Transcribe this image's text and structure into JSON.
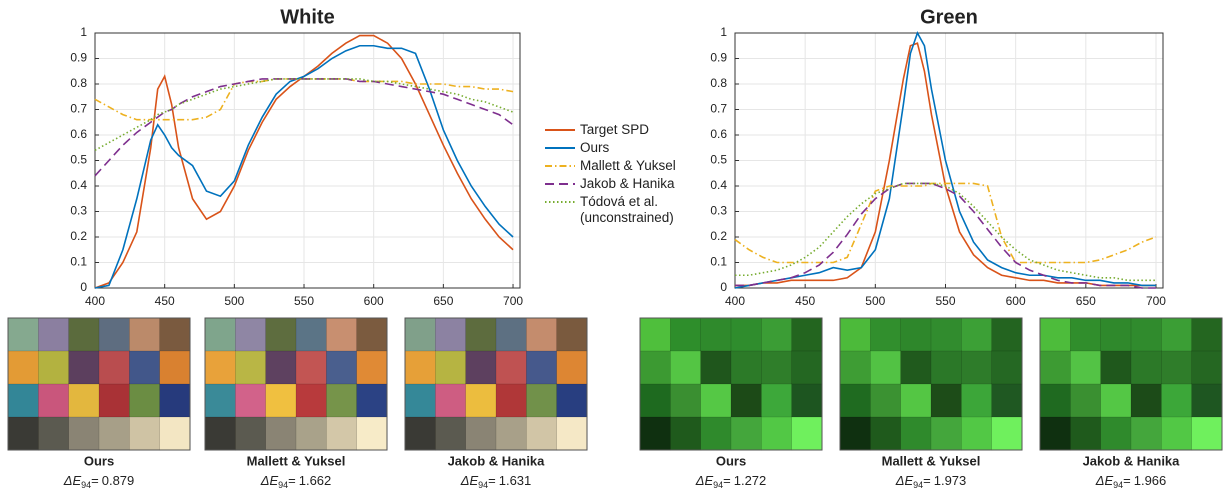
{
  "chart_data": [
    {
      "type": "line",
      "title": "White",
      "x": [
        400,
        410,
        420,
        430,
        440,
        445,
        450,
        455,
        460,
        470,
        480,
        490,
        500,
        510,
        520,
        530,
        540,
        550,
        560,
        570,
        580,
        590,
        600,
        610,
        620,
        630,
        640,
        650,
        660,
        670,
        680,
        690,
        700
      ],
      "series": [
        {
          "values": [
            0,
            0.02,
            0.1,
            0.22,
            0.55,
            0.78,
            0.83,
            0.72,
            0.55,
            0.35,
            0.27,
            0.3,
            0.4,
            0.54,
            0.65,
            0.74,
            0.79,
            0.83,
            0.87,
            0.92,
            0.96,
            0.99,
            0.99,
            0.96,
            0.9,
            0.8,
            0.68,
            0.56,
            0.45,
            0.35,
            0.27,
            0.2,
            0.15
          ]
        },
        {
          "values": [
            0,
            0.01,
            0.15,
            0.35,
            0.58,
            0.64,
            0.6,
            0.55,
            0.52,
            0.48,
            0.38,
            0.36,
            0.42,
            0.56,
            0.67,
            0.76,
            0.81,
            0.83,
            0.86,
            0.9,
            0.93,
            0.95,
            0.95,
            0.94,
            0.94,
            0.92,
            0.78,
            0.62,
            0.5,
            0.4,
            0.32,
            0.25,
            0.2
          ]
        },
        {
          "values": [
            0.74,
            0.71,
            0.68,
            0.66,
            0.66,
            0.66,
            0.66,
            0.66,
            0.66,
            0.66,
            0.67,
            0.7,
            0.8,
            0.81,
            0.81,
            0.82,
            0.82,
            0.82,
            0.82,
            0.82,
            0.82,
            0.81,
            0.81,
            0.81,
            0.81,
            0.8,
            0.8,
            0.8,
            0.79,
            0.79,
            0.78,
            0.78,
            0.77
          ]
        },
        {
          "values": [
            0.44,
            0.5,
            0.56,
            0.61,
            0.65,
            0.67,
            0.69,
            0.7,
            0.72,
            0.75,
            0.77,
            0.79,
            0.8,
            0.81,
            0.82,
            0.82,
            0.82,
            0.82,
            0.82,
            0.82,
            0.82,
            0.81,
            0.81,
            0.8,
            0.79,
            0.78,
            0.77,
            0.76,
            0.74,
            0.72,
            0.7,
            0.68,
            0.64
          ]
        },
        {
          "values": [
            0.54,
            0.57,
            0.6,
            0.63,
            0.66,
            0.68,
            0.69,
            0.7,
            0.72,
            0.74,
            0.76,
            0.78,
            0.79,
            0.8,
            0.81,
            0.82,
            0.82,
            0.82,
            0.82,
            0.82,
            0.82,
            0.82,
            0.81,
            0.81,
            0.8,
            0.79,
            0.78,
            0.77,
            0.76,
            0.74,
            0.73,
            0.71,
            0.69
          ]
        }
      ],
      "xlim": [
        400,
        705
      ],
      "ylim": [
        0,
        1
      ],
      "xticks": [
        400,
        450,
        500,
        550,
        600,
        650,
        700
      ],
      "yticks": [
        0,
        0.1,
        0.2,
        0.3,
        0.4,
        0.5,
        0.6,
        0.7,
        0.8,
        0.9,
        1
      ],
      "grid": true
    },
    {
      "type": "line",
      "title": "Green",
      "x": [
        400,
        410,
        420,
        430,
        440,
        450,
        460,
        470,
        480,
        490,
        500,
        510,
        520,
        525,
        530,
        535,
        540,
        550,
        560,
        570,
        580,
        590,
        600,
        610,
        620,
        630,
        640,
        650,
        660,
        670,
        680,
        690,
        700
      ],
      "series": [
        {
          "values": [
            0.01,
            0.01,
            0.02,
            0.02,
            0.03,
            0.03,
            0.03,
            0.03,
            0.04,
            0.08,
            0.22,
            0.5,
            0.82,
            0.95,
            0.96,
            0.85,
            0.68,
            0.4,
            0.22,
            0.13,
            0.08,
            0.05,
            0.04,
            0.03,
            0.03,
            0.02,
            0.02,
            0.02,
            0.01,
            0.01,
            0.01,
            0.01,
            0.01
          ]
        },
        {
          "values": [
            0,
            0.01,
            0.02,
            0.03,
            0.04,
            0.05,
            0.06,
            0.08,
            0.07,
            0.08,
            0.15,
            0.35,
            0.72,
            0.92,
            1,
            0.95,
            0.78,
            0.5,
            0.3,
            0.18,
            0.11,
            0.08,
            0.06,
            0.05,
            0.05,
            0.04,
            0.04,
            0.03,
            0.03,
            0.02,
            0.02,
            0.01,
            0.01
          ]
        },
        {
          "values": [
            0.19,
            0.15,
            0.12,
            0.1,
            0.1,
            0.1,
            0.1,
            0.1,
            0.12,
            0.25,
            0.38,
            0.4,
            0.4,
            0.4,
            0.4,
            0.4,
            0.41,
            0.41,
            0.41,
            0.41,
            0.4,
            0.2,
            0.1,
            0.1,
            0.1,
            0.1,
            0.1,
            0.1,
            0.11,
            0.13,
            0.15,
            0.18,
            0.2
          ]
        },
        {
          "values": [
            0.01,
            0.01,
            0.02,
            0.03,
            0.04,
            0.06,
            0.09,
            0.14,
            0.21,
            0.29,
            0.35,
            0.39,
            0.41,
            0.41,
            0.41,
            0.41,
            0.41,
            0.39,
            0.36,
            0.3,
            0.23,
            0.16,
            0.1,
            0.07,
            0.05,
            0.03,
            0.02,
            0.02,
            0.01,
            0.01,
            0.01,
            0,
            0
          ]
        },
        {
          "values": [
            0.05,
            0.05,
            0.06,
            0.07,
            0.09,
            0.12,
            0.16,
            0.22,
            0.28,
            0.33,
            0.37,
            0.39,
            0.41,
            0.41,
            0.41,
            0.41,
            0.41,
            0.4,
            0.37,
            0.32,
            0.26,
            0.2,
            0.15,
            0.11,
            0.09,
            0.07,
            0.06,
            0.05,
            0.04,
            0.04,
            0.03,
            0.03,
            0.03
          ]
        }
      ],
      "xlim": [
        400,
        705
      ],
      "ylim": [
        0,
        1
      ],
      "xticks": [
        400,
        450,
        500,
        550,
        600,
        650,
        700
      ],
      "yticks": [
        0,
        0.1,
        0.2,
        0.3,
        0.4,
        0.5,
        0.6,
        0.7,
        0.8,
        0.9,
        1
      ],
      "grid": true
    }
  ],
  "legend": [
    {
      "name": "Target SPD",
      "color": "#d95319",
      "dash": "solid"
    },
    {
      "name": "Ours",
      "color": "#0072bd",
      "dash": "solid"
    },
    {
      "name": "Mallett & Yuksel",
      "color": "#edb120",
      "dash": "dashdot"
    },
    {
      "name": "Jakob & Hanika",
      "color": "#7e2f8e",
      "dash": "dash"
    },
    {
      "name": "Tódová et al. (unconstrained)",
      "color": "#77ac30",
      "dash": "dot"
    }
  ],
  "metric": {
    "symbol": "ΔE",
    "subscript": "94",
    "equals": "="
  },
  "panels": [
    {
      "items": [
        {
          "label": "Ours",
          "score": 0.879,
          "colors": [
            "#85a98f",
            "#8b7fa0",
            "#5b6b3d",
            "#5e6d80",
            "#bb8a6a",
            "#7a5a3f",
            "#e39b35",
            "#b3b240",
            "#5c3f5e",
            "#b94d4f",
            "#42578a",
            "#d98130",
            "#338697",
            "#c9567c",
            "#e3b73e",
            "#a93236",
            "#6b8d43",
            "#263a7c",
            "#3a3a35",
            "#5b5a50",
            "#8a8474",
            "#a79f88",
            "#cfc3a4",
            "#f3e6c3"
          ]
        },
        {
          "label": "Mallett & Yuksel",
          "score": 1.662,
          "colors": [
            "#7fa58c",
            "#8f86a4",
            "#5e6d3f",
            "#5b7486",
            "#c88f70",
            "#7b5b3f",
            "#e8a23a",
            "#b9b645",
            "#5e4160",
            "#c25553",
            "#4a5f8e",
            "#e08a35",
            "#3a8a98",
            "#d2628a",
            "#f0c040",
            "#b83a3c",
            "#76944a",
            "#2b4284",
            "#3a3a35",
            "#5b5a50",
            "#8a8474",
            "#a9a28a",
            "#d3c7a8",
            "#f7ebc8"
          ]
        },
        {
          "label": "Jakob & Hanika",
          "score": 1.631,
          "colors": [
            "#80a08a",
            "#8c82a2",
            "#5d6c3e",
            "#5d7082",
            "#c48c6d",
            "#7a5a3e",
            "#e6a038",
            "#b6b442",
            "#5d405f",
            "#bf5252",
            "#46598c",
            "#dd8633",
            "#358898",
            "#ce5d82",
            "#ecbd3e",
            "#b03738",
            "#71914a",
            "#283e80",
            "#3a3a35",
            "#5b5a50",
            "#8a8474",
            "#a8a089",
            "#d1c5a6",
            "#f5e8c6"
          ]
        }
      ]
    },
    {
      "items": [
        {
          "label": "Ours",
          "score": 1.272,
          "colors": [
            "#4fbf3c",
            "#2e8e2b",
            "#2f8a2c",
            "#2f8d2d",
            "#3b9d35",
            "#23651f",
            "#3c9a32",
            "#54c544",
            "#1f561c",
            "#2c7a28",
            "#2f7e2a",
            "#246722",
            "#1e6a1f",
            "#3a8f31",
            "#55c845",
            "#1c4a17",
            "#3da83a",
            "#1d5520",
            "#0f3010",
            "#1f5a1c",
            "#2f8a2c",
            "#44a63c",
            "#52c845",
            "#6ff05d"
          ]
        },
        {
          "label": "Mallett & Yuksel",
          "score": 1.973,
          "colors": [
            "#4cba3a",
            "#318f2d",
            "#2e872b",
            "#318c2e",
            "#3ca036",
            "#236420",
            "#3e9d34",
            "#52c244",
            "#205a1d",
            "#2b7828",
            "#2e7c2a",
            "#256823",
            "#1f6b20",
            "#3b9232",
            "#54c644",
            "#1d4c18",
            "#3ca639",
            "#1f5822",
            "#0f3010",
            "#1f5a1c",
            "#2f8a2c",
            "#44a63c",
            "#52c845",
            "#6ff05d"
          ]
        },
        {
          "label": "Jakob & Hanika",
          "score": 1.966,
          "colors": [
            "#4dbc3b",
            "#308e2c",
            "#2f892c",
            "#308b2d",
            "#3b9e35",
            "#246620",
            "#3d9b33",
            "#53c345",
            "#1f581c",
            "#2c7928",
            "#2f7d2a",
            "#256722",
            "#1f6a20",
            "#3a9031",
            "#54c745",
            "#1c4b18",
            "#3ca739",
            "#1e5621",
            "#0f3010",
            "#1f5a1c",
            "#2f8a2c",
            "#44a63c",
            "#52c845",
            "#6ff05d"
          ]
        }
      ]
    }
  ]
}
